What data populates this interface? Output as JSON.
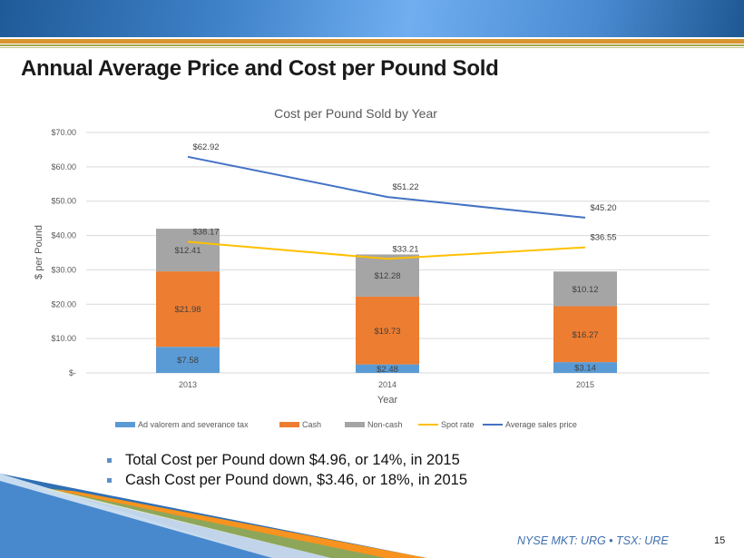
{
  "slide": {
    "title": "Annual Average Price and Cost per Pound Sold",
    "bullets": [
      "Total Cost per Pound down $4.96, or 14%, in 2015",
      "Cash Cost per Pound down, $3.46, or 18%, in 2015"
    ],
    "footer": "NYSE MKT: URG • TSX: URE",
    "page_number": "15"
  },
  "chart_data": {
    "type": "bar",
    "stacked": true,
    "title": "Cost per Pound Sold by Year",
    "xlabel": "Year",
    "ylabel": "$ per Pound",
    "categories": [
      "2013",
      "2014",
      "2015"
    ],
    "ylim": [
      0,
      70
    ],
    "yticks": [
      0,
      10,
      20,
      30,
      40,
      50,
      60,
      70
    ],
    "ytick_labels": [
      "$-",
      "$10.00",
      "$20.00",
      "$30.00",
      "$40.00",
      "$50.00",
      "$60.00",
      "$70.00"
    ],
    "grid": true,
    "legend": "bottom",
    "series": [
      {
        "name": "Ad valorem and severance tax",
        "kind": "bar",
        "color": "#5b9bd5",
        "values": [
          7.58,
          2.48,
          3.14
        ],
        "labels": [
          "$7.58",
          "$2.48",
          "$3.14"
        ]
      },
      {
        "name": "Cash",
        "kind": "bar",
        "color": "#ed7d31",
        "values": [
          21.98,
          19.73,
          16.27
        ],
        "labels": [
          "$21.98",
          "$19.73",
          "$16.27"
        ]
      },
      {
        "name": "Non-cash",
        "kind": "bar",
        "color": "#a5a5a5",
        "values": [
          12.41,
          12.28,
          10.12
        ],
        "labels": [
          "$12.41",
          "$12.28",
          "$10.12"
        ]
      },
      {
        "name": "Spot rate",
        "kind": "line",
        "color": "#ffc000",
        "values": [
          38.17,
          33.21,
          36.55
        ],
        "labels": [
          "$38.17",
          "$33.21",
          "$36.55"
        ]
      },
      {
        "name": "Average sales price",
        "kind": "line",
        "color": "#4472c4",
        "values": [
          62.92,
          51.22,
          45.2
        ],
        "labels": [
          "$62.92",
          "$51.22",
          "$45.20"
        ]
      }
    ]
  }
}
